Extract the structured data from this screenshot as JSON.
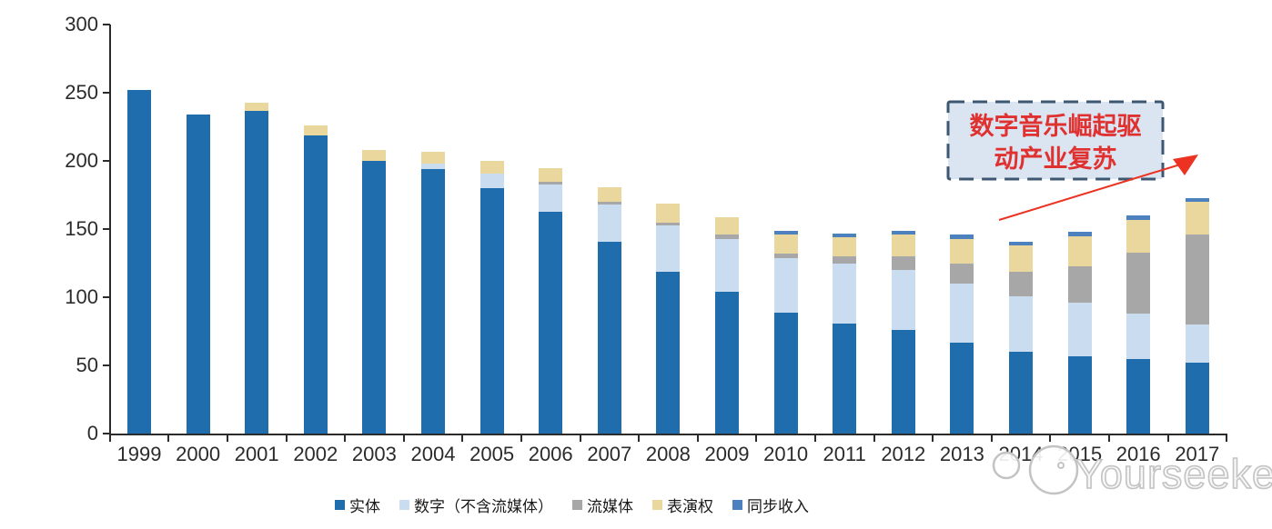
{
  "chart_data": {
    "type": "bar",
    "stacked": true,
    "categories": [
      "1999",
      "2000",
      "2001",
      "2002",
      "2003",
      "2004",
      "2005",
      "2006",
      "2007",
      "2008",
      "2009",
      "2010",
      "2011",
      "2012",
      "2013",
      "2014",
      "2015",
      "2016",
      "2017"
    ],
    "series": [
      {
        "name": "实体",
        "color": "#1F6DAD",
        "values": [
          252,
          234,
          237,
          219,
          200,
          194,
          180,
          163,
          141,
          119,
          104,
          89,
          81,
          76,
          67,
          60,
          57,
          55,
          52
        ]
      },
      {
        "name": "数字（不含流媒体）",
        "color": "#C9DCF0",
        "values": [
          0,
          0,
          0,
          0,
          0,
          4,
          11,
          20,
          27,
          34,
          39,
          40,
          44,
          44,
          43,
          41,
          39,
          33,
          28
        ]
      },
      {
        "name": "流媒体",
        "color": "#A7A7A7",
        "values": [
          0,
          0,
          0,
          0,
          0,
          0,
          0,
          2,
          2,
          2,
          3,
          3,
          5,
          10,
          15,
          18,
          27,
          45,
          66
        ]
      },
      {
        "name": "表演权",
        "color": "#E9D79E",
        "values": [
          0,
          0,
          6,
          7,
          8,
          9,
          9,
          10,
          11,
          14,
          13,
          14,
          14,
          16,
          18,
          19,
          22,
          24,
          24
        ]
      },
      {
        "name": "同步收入",
        "color": "#4D81BD",
        "values": [
          0,
          0,
          0,
          0,
          0,
          0,
          0,
          0,
          0,
          0,
          0,
          3,
          3,
          3,
          3,
          3,
          3,
          3,
          3
        ]
      }
    ],
    "ylim": [
      0,
      300
    ],
    "yticks": [
      0,
      50,
      100,
      150,
      200,
      250,
      300
    ],
    "grid": false,
    "legend_position": "bottom"
  },
  "annotation": {
    "line1": "数字音乐崛起驱",
    "line2": "动产业复苏",
    "text_color": "#e03131",
    "box_fill": "#DBE5F1",
    "box_border": "#3E5771",
    "arrow_color": "#EC3323"
  },
  "watermark": {
    "text": "Yourseeker",
    "color": "#c3c3c3"
  }
}
